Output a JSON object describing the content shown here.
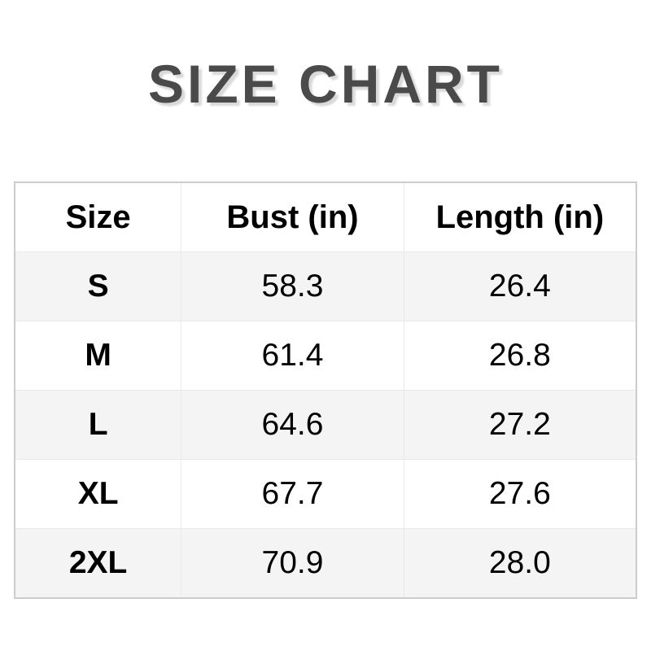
{
  "title": "SIZE CHART",
  "table": {
    "headers": [
      "Size",
      "Bust (in)",
      "Length (in)"
    ],
    "rows": [
      {
        "size": "S",
        "bust": "58.3",
        "length": "26.4"
      },
      {
        "size": "M",
        "bust": "61.4",
        "length": "26.8"
      },
      {
        "size": "L",
        "bust": "64.6",
        "length": "27.2"
      },
      {
        "size": "XL",
        "bust": "67.7",
        "length": "27.6"
      },
      {
        "size": "2XL",
        "bust": "70.9",
        "length": "28.0"
      }
    ]
  },
  "colors": {
    "title_text": "#4a4a4a",
    "title_shadow": "#d9d9d9",
    "row_alt_background": "#f4f4f4",
    "table_border": "#cccccc",
    "cell_divider": "#e9e9e9",
    "cell_text": "#000000"
  },
  "chart_data": {
    "type": "table",
    "title": "SIZE CHART",
    "columns": [
      "Size",
      "Bust (in)",
      "Length (in)"
    ],
    "rows": [
      [
        "S",
        58.3,
        26.4
      ],
      [
        "M",
        61.4,
        26.8
      ],
      [
        "L",
        64.6,
        27.2
      ],
      [
        "XL",
        67.7,
        27.6
      ],
      [
        "2XL",
        70.9,
        28.0
      ]
    ]
  }
}
